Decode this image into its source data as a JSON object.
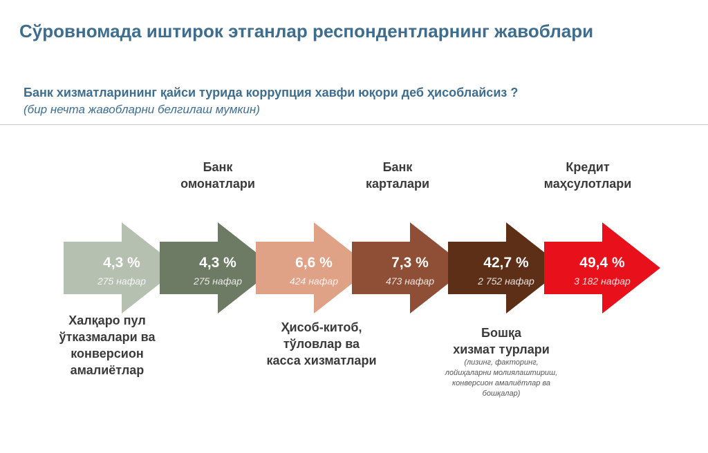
{
  "header": {
    "title": "Сўровномада иштирок этганлар респондентларнинг жавоблари",
    "question": "Банк хизматларининг қайси турида коррупция хавфи юқори деб ҳисоблайсиз ?",
    "subquestion": "(бир нечта жавобларни белгилаш мумкин)"
  },
  "chart_data": {
    "type": "bar",
    "title": "Банк хизматларининг қайси турида коррупция хавфи юқори деб ҳисоблайсиз ?",
    "categories": [
      "Халқаро пул ўтказмалари ва конверсион амалиётлар",
      "Банк омонатлари",
      "Ҳисоб-китоб, тўловлар ва касса хизматлари",
      "Банк карталари",
      "Бошқа хизмат турлари",
      "Кредит маҳсулотлари"
    ],
    "values": [
      4.3,
      4.3,
      6.6,
      7.3,
      42.7,
      49.4
    ],
    "counts": [
      275,
      275,
      424,
      473,
      2752,
      3182
    ],
    "unit": "%",
    "series": [
      {
        "pct_label": "4,3 %",
        "count_label": "275 нафар",
        "color": "#b6c0b1"
      },
      {
        "pct_label": "4,3 %",
        "count_label": "275 нафар",
        "color": "#6e7b64"
      },
      {
        "pct_label": "6,6 %",
        "count_label": "424 нафар",
        "color": "#e0a287"
      },
      {
        "pct_label": "7,3 %",
        "count_label": "473 нафар",
        "color": "#8f4f36"
      },
      {
        "pct_label": "42,7 %",
        "count_label": "2 752 нафар",
        "color": "#5e2f17"
      },
      {
        "pct_label": "49,4 %",
        "count_label": "3 182 нафар",
        "color": "#e8101a"
      }
    ]
  },
  "labels": {
    "omonat": {
      "line1": "Банк",
      "line2": "омонатлари"
    },
    "karta": {
      "line1": "Банк",
      "line2": "карталари"
    },
    "kredit": {
      "line1": "Кредит",
      "line2": "маҳсулотлари"
    },
    "xalqaro": {
      "line1": "Халқаро пул",
      "line2": "ўтказмалари ва",
      "line3": "конверсион",
      "line4": "амалиётлар"
    },
    "hisob": {
      "line1": "Ҳисоб-китоб,",
      "line2": "тўловлар ва",
      "line3": "касса хизматлари"
    },
    "boshqa": {
      "line1": "Бошқа",
      "line2": "хизмат турлари",
      "note1": "(лизинг, факторинг,",
      "note2": "лойиҳаларни молиялаштириш,",
      "note3": "конверсион амалиётлар ва",
      "note4": "бошқалар)"
    }
  }
}
